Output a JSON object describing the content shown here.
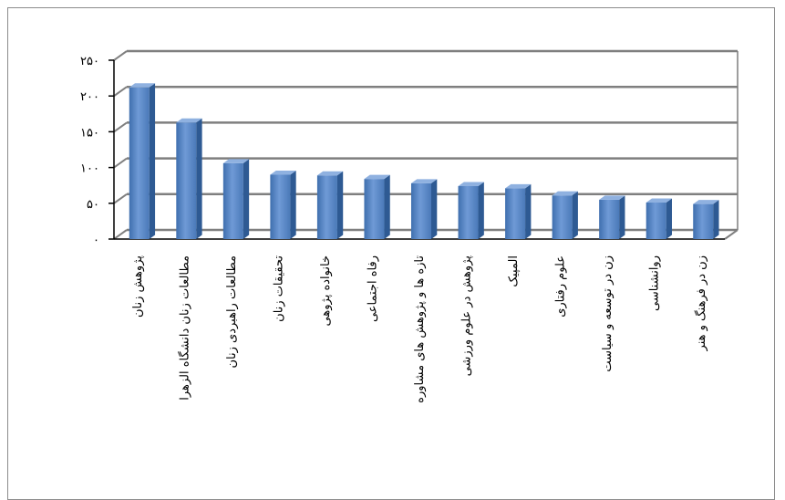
{
  "chart_data": {
    "type": "bar",
    "style": "3d-column",
    "categories": [
      "پژوهش زنان",
      "مطالعات زنان دانشگاه الزهرا",
      "مطالعات راهبردی زنان",
      "تحقیقات زنان",
      "خانواده پژوهی",
      "رفاه اجتماعی",
      "تازه ها و پژوهش های مشاوره",
      "پژوهش در علوم ورزشی",
      "المپیک",
      "علوم رفتاری",
      "زن در توسعه و سیاست",
      "روانشناسی",
      "زن در فرهنگ و هنر"
    ],
    "values": [
      212,
      163,
      106,
      90,
      89,
      84,
      78,
      74,
      71,
      61,
      55,
      51,
      49
    ],
    "ylim": [
      0,
      250
    ],
    "yticks": [
      0,
      50,
      100,
      150,
      200,
      250
    ],
    "ytick_labels": [
      "٠",
      "۵٠",
      "١٠٠",
      "١۵٠",
      "٢٠٠",
      "٢۵٠"
    ],
    "gridlines": true,
    "legend": "none",
    "bar_color": "#4f81bd",
    "title": "",
    "xlabel": "",
    "ylabel": ""
  }
}
